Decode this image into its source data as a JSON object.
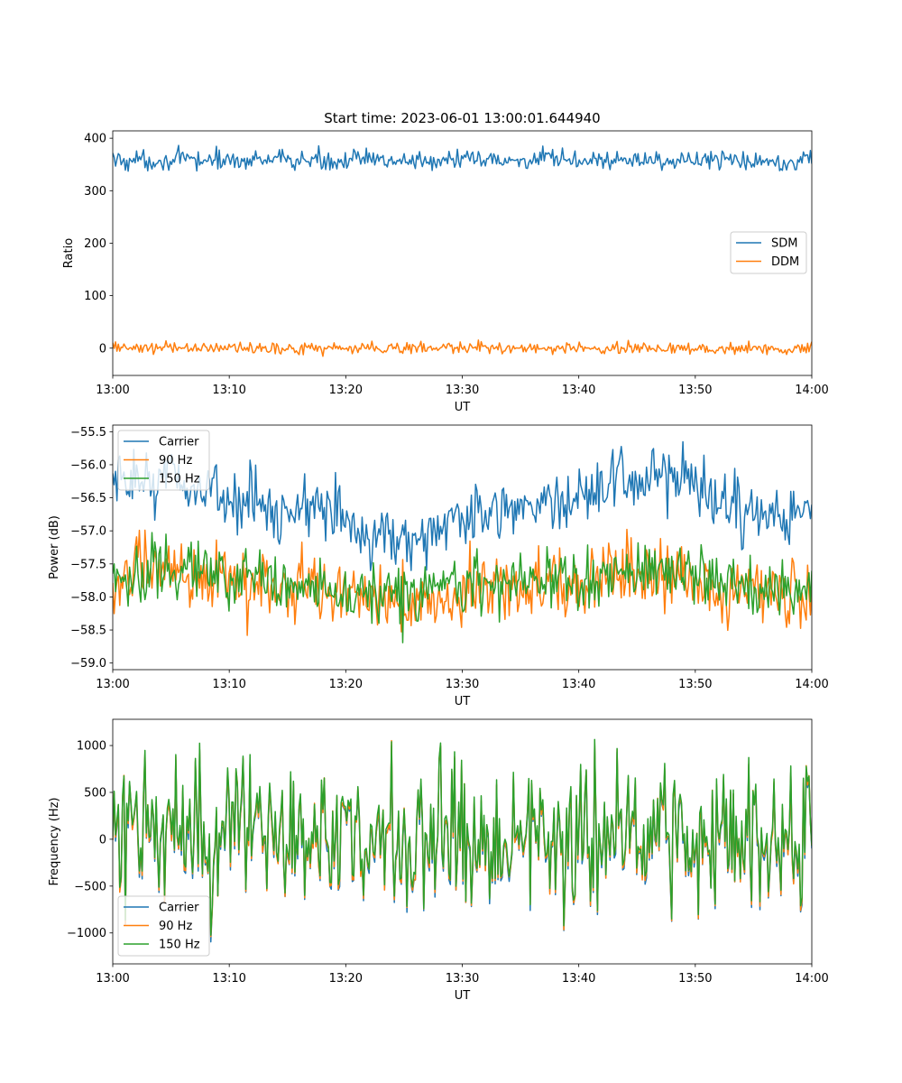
{
  "figure_title": "Start time: 2023-06-01 13:00:01.644940",
  "chart_data": [
    {
      "type": "line",
      "xlabel": "UT",
      "ylabel": "Ratio",
      "x_range": [
        "13:00",
        "14:00"
      ],
      "x_ticks": [
        "13:00",
        "13:10",
        "13:20",
        "13:30",
        "13:40",
        "13:50",
        "14:00"
      ],
      "ylim": [
        -52,
        414
      ],
      "y_ticks": [
        0,
        100,
        200,
        300,
        400
      ],
      "y_tick_labels": [
        "0",
        "100",
        "200",
        "300",
        "400"
      ],
      "legend_position": "center-right",
      "series": [
        {
          "name": "SDM",
          "color": "#1f77b4",
          "mean": 358,
          "noise": 13,
          "min": 320,
          "max": 393
        },
        {
          "name": "DDM",
          "color": "#ff7f0e",
          "mean": 0,
          "noise": 8,
          "min": -30,
          "max": 32
        }
      ]
    },
    {
      "type": "line",
      "xlabel": "UT",
      "ylabel": "Power (dB)",
      "x_range": [
        "13:00",
        "14:00"
      ],
      "x_ticks": [
        "13:00",
        "13:10",
        "13:20",
        "13:30",
        "13:40",
        "13:50",
        "14:00"
      ],
      "ylim": [
        -59.1,
        -55.4
      ],
      "y_ticks": [
        -59.0,
        -58.5,
        -58.0,
        -57.5,
        -57.0,
        -56.5,
        -56.0,
        -55.5
      ],
      "y_tick_labels": [
        "−59.0",
        "−58.5",
        "−58.0",
        "−57.5",
        "−57.0",
        "−56.5",
        "−56.0",
        "−55.5"
      ],
      "legend_position": "upper-left",
      "series": [
        {
          "name": "Carrier",
          "color": "#1f77b4",
          "mean": -56.65,
          "noise": 0.3,
          "min": -57.6,
          "max": -55.52
        },
        {
          "name": "90 Hz",
          "color": "#ff7f0e",
          "mean": -57.85,
          "noise": 0.33,
          "min": -58.92,
          "max": -56.65
        },
        {
          "name": "150 Hz",
          "color": "#2ca02c",
          "mean": -57.8,
          "noise": 0.3,
          "min": -58.92,
          "max": -56.7
        }
      ]
    },
    {
      "type": "line",
      "xlabel": "UT",
      "ylabel": "Frequency (Hz)",
      "x_range": [
        "13:00",
        "14:00"
      ],
      "x_ticks": [
        "13:00",
        "13:10",
        "13:20",
        "13:30",
        "13:40",
        "13:50",
        "14:00"
      ],
      "ylim": [
        -1330,
        1280
      ],
      "y_ticks": [
        -1000,
        -500,
        0,
        500,
        1000
      ],
      "y_tick_labels": [
        "−1000",
        "−500",
        "0",
        "500",
        "1000"
      ],
      "legend_position": "lower-left",
      "series": [
        {
          "name": "Carrier",
          "color": "#1f77b4",
          "mean": 0,
          "noise": 420,
          "min": -1215,
          "max": 1200
        },
        {
          "name": "90 Hz",
          "color": "#ff7f0e",
          "mean": 20,
          "noise": 420,
          "min": -1200,
          "max": 1200
        },
        {
          "name": "150 Hz",
          "color": "#2ca02c",
          "mean": 50,
          "noise": 420,
          "min": -1190,
          "max": 1200
        }
      ]
    }
  ]
}
